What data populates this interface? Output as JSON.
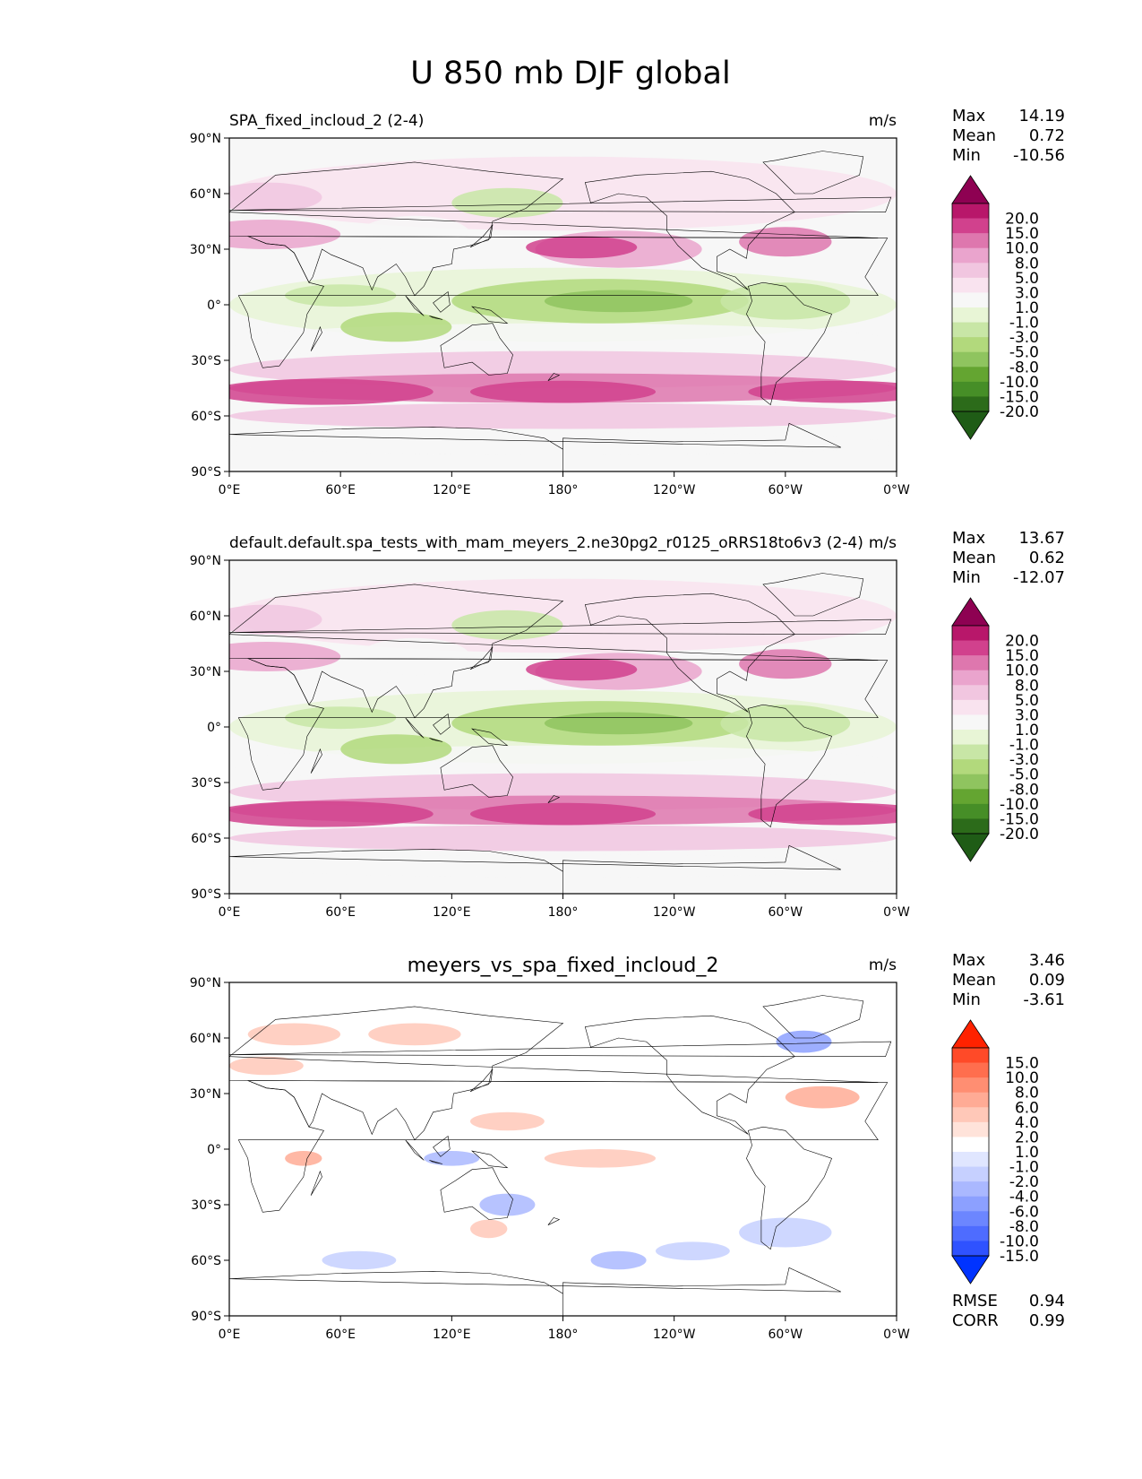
{
  "figure_title": "U 850 mb DJF global",
  "chart_data": [
    {
      "type": "heatmap",
      "title": "SPA_fixed_incloud_2 (2-4)",
      "units": "m/s",
      "stats": [
        {
          "label": "Max",
          "value": "14.19"
        },
        {
          "label": "Mean",
          "value": "0.72"
        },
        {
          "label": "Min",
          "value": "-10.56"
        }
      ],
      "x_ticks": [
        "0°E",
        "60°E",
        "120°E",
        "180°",
        "120°W",
        "60°W",
        "0°W"
      ],
      "y_ticks": [
        "90°N",
        "60°N",
        "30°N",
        "0°",
        "30°S",
        "60°S",
        "90°S"
      ],
      "xlim": [
        0,
        360
      ],
      "ylim": [
        -90,
        90
      ],
      "colorbar": {
        "levels": [
          "20.0",
          "15.0",
          "10.0",
          "8.0",
          "5.0",
          "3.0",
          "1.0",
          "-1.0",
          "-3.0",
          "-5.0",
          "-8.0",
          "-10.0",
          "-15.0",
          "-20.0"
        ],
        "colors": [
          "#8e0152",
          "#b8176a",
          "#d1418d",
          "#de77ae",
          "#eaa4cd",
          "#f1c6e0",
          "#f9e3ef",
          "#f7f7f7",
          "#e8f5d6",
          "#c8e6a6",
          "#b2d97c",
          "#8fc45f",
          "#64a531",
          "#468e27",
          "#2c6b1a",
          "#1f5c16"
        ]
      }
    },
    {
      "type": "heatmap",
      "title": "default.default.spa_tests_with_mam_meyers_2.ne30pg2_r0125_oRRS18to6v3 (2-4)",
      "units": "m/s",
      "stats": [
        {
          "label": "Max",
          "value": "13.67"
        },
        {
          "label": "Mean",
          "value": "0.62"
        },
        {
          "label": "Min",
          "value": "-12.07"
        }
      ],
      "x_ticks": [
        "0°E",
        "60°E",
        "120°E",
        "180°",
        "120°W",
        "60°W",
        "0°W"
      ],
      "y_ticks": [
        "90°N",
        "60°N",
        "30°N",
        "0°",
        "30°S",
        "60°S",
        "90°S"
      ],
      "xlim": [
        0,
        360
      ],
      "ylim": [
        -90,
        90
      ],
      "colorbar": {
        "levels": [
          "20.0",
          "15.0",
          "10.0",
          "8.0",
          "5.0",
          "3.0",
          "1.0",
          "-1.0",
          "-3.0",
          "-5.0",
          "-8.0",
          "-10.0",
          "-15.0",
          "-20.0"
        ],
        "colors": [
          "#8e0152",
          "#b8176a",
          "#d1418d",
          "#de77ae",
          "#eaa4cd",
          "#f1c6e0",
          "#f9e3ef",
          "#f7f7f7",
          "#e8f5d6",
          "#c8e6a6",
          "#b2d97c",
          "#8fc45f",
          "#64a531",
          "#468e27",
          "#2c6b1a",
          "#1f5c16"
        ]
      }
    },
    {
      "type": "heatmap",
      "title": "meyers_vs_spa_fixed_incloud_2",
      "units": "m/s",
      "stats": [
        {
          "label": "Max",
          "value": "3.46"
        },
        {
          "label": "Mean",
          "value": "0.09"
        },
        {
          "label": "Min",
          "value": "-3.61"
        }
      ],
      "x_ticks": [
        "0°E",
        "60°E",
        "120°E",
        "180°",
        "120°W",
        "60°W",
        "0°W"
      ],
      "y_ticks": [
        "90°N",
        "60°N",
        "30°N",
        "0°",
        "30°S",
        "60°S",
        "90°S"
      ],
      "xlim": [
        0,
        360
      ],
      "ylim": [
        -90,
        90
      ],
      "colorbar": {
        "levels": [
          "15.0",
          "10.0",
          "8.0",
          "6.0",
          "4.0",
          "2.0",
          "1.0",
          "-1.0",
          "-2.0",
          "-4.0",
          "-6.0",
          "-8.0",
          "-10.0",
          "-15.0"
        ],
        "colors": [
          "#ff2200",
          "#ff4a28",
          "#ff6e4e",
          "#ff8e72",
          "#ffab95",
          "#ffc8b8",
          "#ffe3da",
          "#ffffff",
          "#e0e6ff",
          "#c6d0ff",
          "#aab8ff",
          "#8ca0ff",
          "#6c86ff",
          "#4e6cff",
          "#2f52ff",
          "#0033ff"
        ]
      },
      "error_stats": [
        {
          "label": "RMSE",
          "value": "0.94"
        },
        {
          "label": "CORR",
          "value": "0.99"
        }
      ]
    }
  ]
}
